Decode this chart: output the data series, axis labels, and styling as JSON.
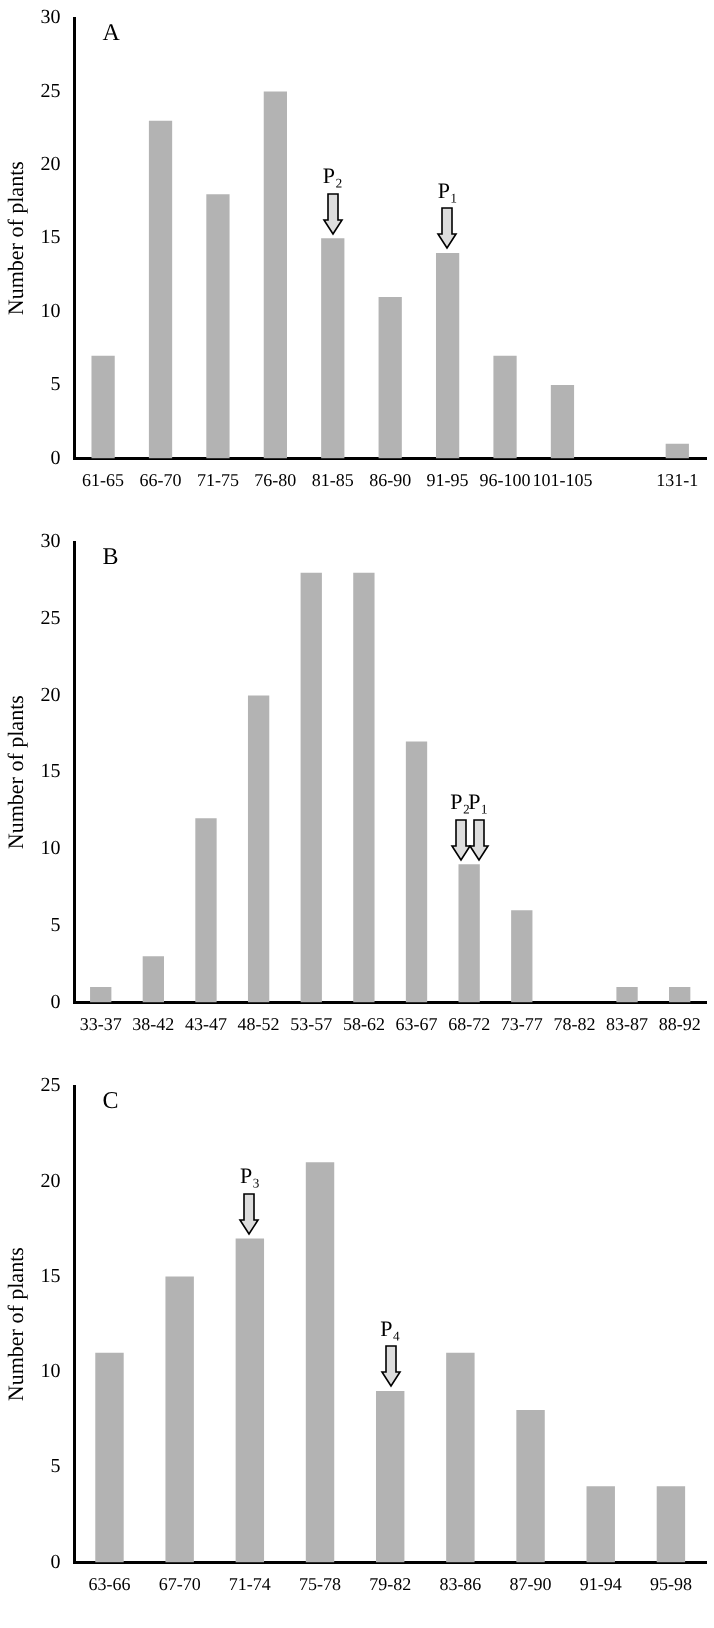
{
  "chart_data": [
    {
      "type": "bar",
      "title": "A",
      "ylabel": "Number of plants",
      "categories": [
        "61-65",
        "66-70",
        "71-75",
        "76-80",
        "81-85",
        "86-90",
        "91-95",
        "96-100",
        "101-105",
        null,
        "131-1"
      ],
      "values": [
        7,
        23,
        18,
        25,
        15,
        11,
        14,
        7,
        5,
        null,
        1
      ],
      "color": "#b3b3b3",
      "ylim": [
        0,
        30
      ],
      "yticks": [
        0,
        5,
        10,
        15,
        20,
        25,
        30
      ],
      "grid": false,
      "legend": false,
      "annotations": [
        {
          "text": "P₂",
          "x": "81-85",
          "y": 15
        },
        {
          "text": "P₁",
          "x": "91-95",
          "y": 14
        }
      ]
    },
    {
      "type": "bar",
      "title": "B",
      "ylabel": "Number of plants",
      "categories": [
        "33-37",
        "38-42",
        "43-47",
        "48-52",
        "53-57",
        "58-62",
        "63-67",
        "68-72",
        "73-77",
        "78-82",
        "83-87",
        "88-92"
      ],
      "values": [
        1,
        3,
        12,
        20,
        28,
        28,
        17,
        9,
        6,
        0,
        1,
        1
      ],
      "color": "#b3b3b3",
      "ylim": [
        0,
        30
      ],
      "yticks": [
        0,
        5,
        10,
        15,
        20,
        25,
        30
      ],
      "grid": false,
      "legend": false,
      "annotations": [
        {
          "text": "P₂",
          "x": "68-72",
          "y": 9
        },
        {
          "text": "P₁",
          "x": "68-72",
          "y": 9
        }
      ]
    },
    {
      "type": "bar",
      "title": "C",
      "ylabel": "Number of plants",
      "categories": [
        "63-66",
        "67-70",
        "71-74",
        "75-78",
        "79-82",
        "83-86",
        "87-90",
        "91-94",
        "95-98"
      ],
      "values": [
        11,
        15,
        17,
        21,
        9,
        11,
        8,
        4,
        4
      ],
      "color": "#b3b3b3",
      "ylim": [
        0,
        25
      ],
      "yticks": [
        0,
        5,
        10,
        15,
        20,
        25
      ],
      "grid": false,
      "legend": false,
      "annotations": [
        {
          "text": "P₃",
          "x": "71-74",
          "y": 17
        },
        {
          "text": "P₄",
          "x": "79-82",
          "y": 9
        }
      ]
    }
  ]
}
